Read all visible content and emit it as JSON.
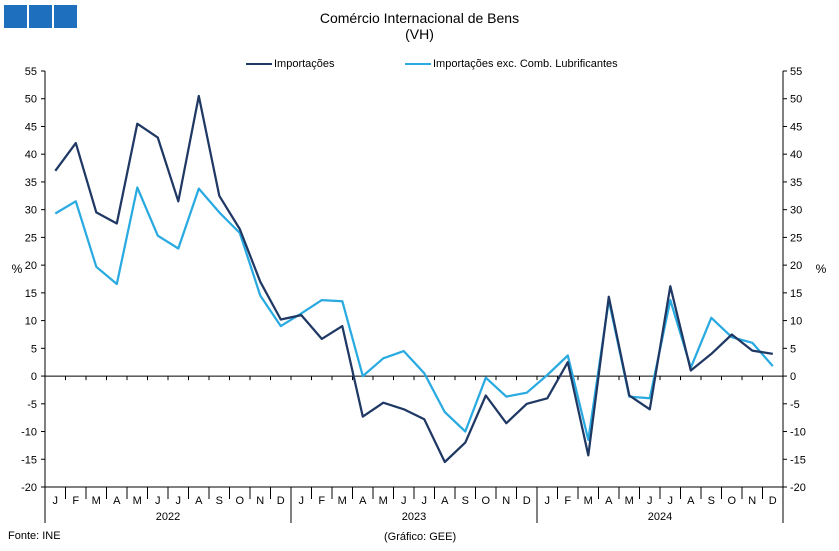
{
  "chart_data": {
    "type": "line",
    "title": "Comércio Internacional  de Bens",
    "subtitle": "(VH)",
    "ylabel_left": "%",
    "ylabel_right": "%",
    "ylim": [
      -20,
      55
    ],
    "yticks": [
      -20,
      -15,
      -10,
      -5,
      0,
      5,
      10,
      15,
      20,
      25,
      30,
      35,
      40,
      45,
      50,
      55
    ],
    "month_labels": [
      "J",
      "F",
      "M",
      "A",
      "M",
      "J",
      "J",
      "A",
      "S",
      "O",
      "N",
      "D",
      "J",
      "F",
      "M",
      "A",
      "M",
      "J",
      "J",
      "A",
      "S",
      "O",
      "N",
      "D",
      "J",
      "F",
      "M",
      "A",
      "M",
      "J",
      "J",
      "A",
      "S",
      "O",
      "N",
      "D"
    ],
    "years": [
      "2022",
      "2023",
      "2024"
    ],
    "grid": false,
    "legend_position": "top",
    "series": [
      {
        "name": "Importações",
        "color": "#1f3864",
        "values": [
          37,
          42,
          29.5,
          27.5,
          45.5,
          43,
          31.5,
          50.5,
          32.5,
          26.5,
          17,
          10.2,
          11,
          6.7,
          9,
          -7.3,
          -4.8,
          -6,
          -7.8,
          -15.5,
          -12,
          -3.5,
          -8.5,
          -5,
          -4,
          2.5,
          -14.3,
          14.3,
          -3.5,
          -6,
          16.2,
          1,
          4,
          7.5,
          4.6,
          4
        ]
      },
      {
        "name": "Importações exc. Comb. Lubrificantes",
        "color": "#29aae1",
        "values": [
          29.3,
          31.5,
          19.7,
          16.6,
          34,
          25.3,
          23,
          33.8,
          29.5,
          25.8,
          14.5,
          9,
          11.3,
          13.7,
          13.5,
          0,
          3.2,
          4.5,
          0.5,
          -6.5,
          -10,
          -0.3,
          -3.7,
          -3,
          0.2,
          3.7,
          -11.5,
          13.7,
          -3.7,
          -4,
          13.7,
          1.5,
          10.5,
          7,
          6,
          1.8
        ]
      }
    ]
  },
  "footer": {
    "source": "Fonte: INE",
    "credit": "(Gráfico: GEE)"
  }
}
